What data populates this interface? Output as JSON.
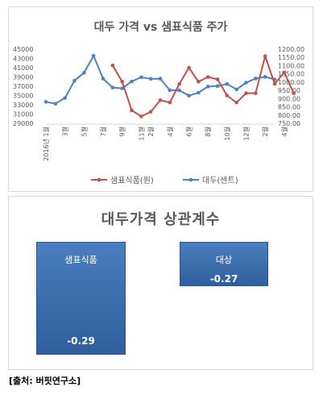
{
  "line_chart_title": "대두 가격 vs 샘표식품 주가",
  "corr_title": "대두가격 상관계수",
  "source": "[출처: 버핏연구소]",
  "colors": {
    "sempio": "#c0504d",
    "soybean": "#4f81bd"
  },
  "chart_data": [
    {
      "type": "line",
      "title": "대두 가격 vs 샘표식품 주가",
      "x_ticks": [
        "2016년 1월",
        "3월",
        "5월",
        "7월",
        "9월",
        "11월",
        "2월",
        "4월",
        "6월",
        "8월",
        "10월",
        "12월",
        "2월",
        "4월"
      ],
      "left_axis": {
        "range": [
          29000,
          45000
        ],
        "ticks": [
          "45000",
          "43000",
          "41000",
          "39000",
          "37000",
          "35000",
          "33000",
          "31000",
          "29000"
        ]
      },
      "right_axis": {
        "range": [
          750,
          1200
        ],
        "ticks": [
          "1200.00",
          "1150.00",
          "1100.00",
          "1050.00",
          "1000.00",
          "950.00",
          "900.00",
          "850.00",
          "800.00",
          "750.00"
        ]
      },
      "legend_position": "bottom",
      "series": [
        {
          "name": "샘표식품(원)",
          "axis": "left",
          "start_index": 7,
          "values": [
            41500,
            38000,
            31800,
            30500,
            31500,
            34000,
            33500,
            37500,
            41000,
            38000,
            39000,
            38500,
            35000,
            33500,
            35500,
            35500,
            43500,
            37500,
            40000,
            35500
          ]
        },
        {
          "name": "대두(센트)",
          "axis": "right",
          "start_index": 0,
          "values": [
            880,
            869,
            904,
            1009,
            1057,
            1160,
            1021,
            967,
            962,
            1004,
            1030,
            1020,
            1021,
            951,
            950,
            918,
            936,
            973,
            976,
            989,
            956,
            997,
            1022,
            1032,
            1016
          ]
        }
      ]
    },
    {
      "type": "bar",
      "title": "대두가격 상관계수",
      "categories": [
        "샘표식품",
        "대상"
      ],
      "values": [
        -0.29,
        -0.27
      ],
      "value_labels": [
        "-0.29",
        "-0.27"
      ]
    }
  ]
}
